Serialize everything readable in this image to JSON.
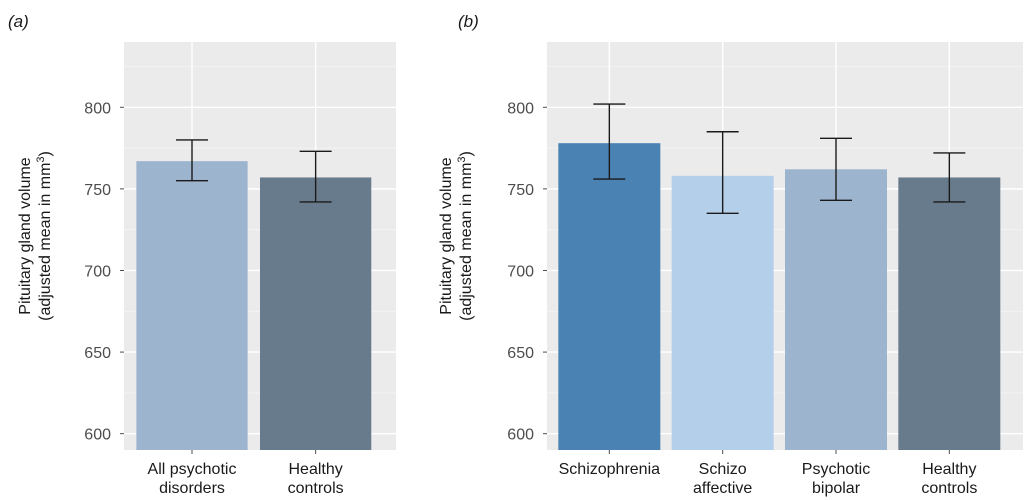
{
  "chart_data": [
    {
      "type": "bar",
      "panel_label": "(a)",
      "ylabel_line1": "Pituitary gland volume",
      "ylabel_line2_prefix": "(adjusted mean in mm",
      "ylabel_line2_sup": "3",
      "ylabel_line2_suffix": ")",
      "ylim": [
        590,
        840
      ],
      "yticks": [
        600,
        650,
        700,
        750,
        800
      ],
      "grid": true,
      "categories": [
        {
          "lines": [
            "All psychotic",
            "disorders"
          ]
        },
        {
          "lines": [
            "Healthy",
            "controls"
          ]
        }
      ],
      "values": [
        767,
        757
      ],
      "error_low": [
        755,
        742
      ],
      "error_high": [
        780,
        773
      ],
      "colors": [
        "#9db4cf",
        "#687b8c"
      ]
    },
    {
      "type": "bar",
      "panel_label": "(b)",
      "ylabel_line1": "Pituitary gland volume",
      "ylabel_line2_prefix": "(adjusted mean in mm",
      "ylabel_line2_sup": "3",
      "ylabel_line2_suffix": ")",
      "ylim": [
        590,
        840
      ],
      "yticks": [
        600,
        650,
        700,
        750,
        800
      ],
      "grid": true,
      "categories": [
        {
          "lines": [
            "Schizophrenia"
          ]
        },
        {
          "lines": [
            "Schizo",
            "affective"
          ]
        },
        {
          "lines": [
            "Psychotic",
            "bipolar"
          ]
        },
        {
          "lines": [
            "Healthy",
            "controls"
          ]
        }
      ],
      "values": [
        778,
        758,
        762,
        757
      ],
      "error_low": [
        756,
        735,
        743,
        742
      ],
      "error_high": [
        802,
        785,
        781,
        772
      ],
      "colors": [
        "#4a82b4",
        "#b4cfe9",
        "#9db4cf",
        "#687b8c"
      ]
    }
  ]
}
